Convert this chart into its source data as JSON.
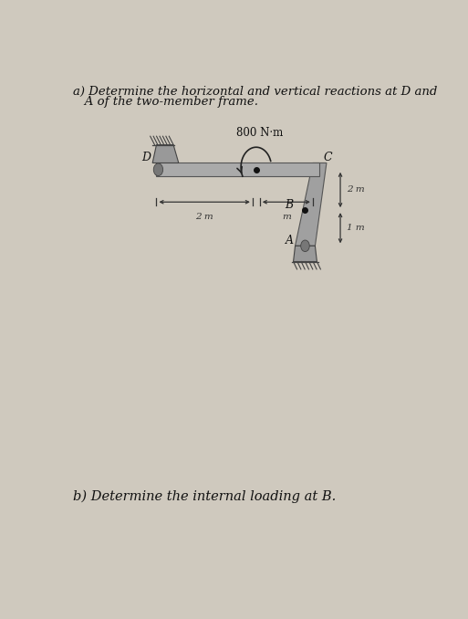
{
  "title_a_line1": "a) Determine the horizontal and vertical reactions at D and",
  "title_a_line2": "   A of the two-member frame.",
  "title_b": "b) Determine the internal loading at B.",
  "moment_label": "800 N·m",
  "dim_2m_left": "2 m",
  "dim_2m_mid": "m",
  "dim_2m_right": "2 m",
  "dim_1m": "1 m",
  "label_D": "D",
  "label_C": "C",
  "label_B": "B",
  "label_A": "A",
  "bg_color": "#cfc9be",
  "beam_color": "#aaaaaa",
  "col_color": "#a0a0a0",
  "support_color": "#888888",
  "text_color": "#111111",
  "dot_color": "#111111",
  "line_color": "#333333"
}
